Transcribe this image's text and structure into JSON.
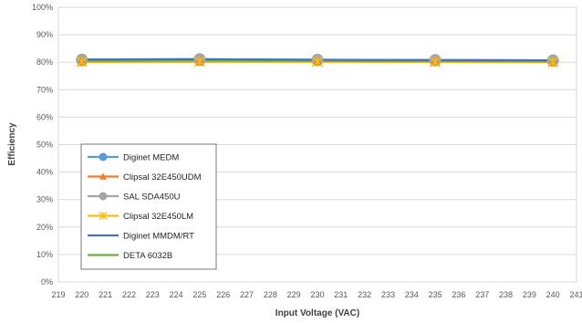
{
  "chart_data": {
    "type": "line",
    "title": "",
    "xlabel": "Input Voltage (VAC)",
    "ylabel": "Efficiency",
    "xlim": [
      219,
      241
    ],
    "ylim": [
      0,
      100
    ],
    "x_ticks": [
      219,
      220,
      221,
      222,
      223,
      224,
      225,
      226,
      227,
      228,
      229,
      230,
      231,
      232,
      233,
      234,
      235,
      236,
      237,
      238,
      239,
      240,
      241
    ],
    "y_ticks": [
      "0%",
      "10%",
      "20%",
      "30%",
      "40%",
      "50%",
      "60%",
      "70%",
      "80%",
      "90%",
      "100%"
    ],
    "x": [
      220,
      225,
      230,
      235,
      240
    ],
    "grid": "horizontal",
    "legend_position": "lower-left",
    "series": [
      {
        "name": "Diginet MEDM",
        "values": [
          81.0,
          81.1,
          80.9,
          80.8,
          80.7
        ],
        "color": "#5b9bd5",
        "marker": "circle"
      },
      {
        "name": "Clipsal 32E450UDM",
        "values": [
          80.1,
          80.2,
          80.2,
          80.1,
          80.0
        ],
        "color": "#ed7d31",
        "marker": "triangle"
      },
      {
        "name": "SAL SDA450U",
        "values": [
          80.9,
          81.0,
          80.8,
          80.8,
          80.6
        ],
        "color": "#a5a5a5",
        "marker": "circle"
      },
      {
        "name": "Clipsal 32E450LM",
        "values": [
          80.2,
          80.3,
          80.2,
          80.1,
          80.1
        ],
        "color": "#ffc000",
        "marker": "x"
      },
      {
        "name": "Diginet MMDM/RT",
        "values": [
          81.0,
          81.1,
          80.9,
          80.8,
          80.7
        ],
        "color": "#4472c4",
        "marker": "none"
      },
      {
        "name": "DETA 6032B",
        "values": [
          80.5,
          80.6,
          80.5,
          80.4,
          80.3
        ],
        "color": "#70ad47",
        "marker": "none"
      }
    ]
  }
}
